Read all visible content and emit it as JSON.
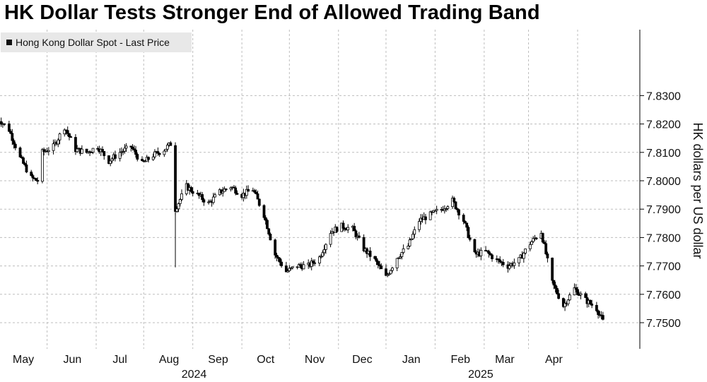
{
  "title": "HK Dollar Tests Stronger End of Allowed Trading Band",
  "legend": {
    "label": "Hong Kong Dollar Spot - Last Price"
  },
  "colors": {
    "candle": "#000000",
    "grid": "#bdbdbd",
    "legend_bg": "#e8e8e8"
  },
  "chart_data": {
    "type": "candlestick",
    "title": "HK Dollar Tests Stronger End of Allowed Trading Band",
    "ylabel": "HK dollars per US dollar",
    "xlabel": "",
    "ylim": [
      7.745,
      7.832
    ],
    "y_ticks": [
      "7.8300",
      "7.8200",
      "7.8100",
      "7.8000",
      "7.7900",
      "7.7800",
      "7.7700",
      "7.7600",
      "7.7500"
    ],
    "x_months": [
      {
        "label": "May",
        "date": "2024-05-01"
      },
      {
        "label": "Jun",
        "date": "2024-06-01"
      },
      {
        "label": "Jul",
        "date": "2024-07-01"
      },
      {
        "label": "Aug",
        "date": "2024-08-01"
      },
      {
        "label": "Sep",
        "date": "2024-09-01"
      },
      {
        "label": "Oct",
        "date": "2024-10-01"
      },
      {
        "label": "Nov",
        "date": "2024-11-01"
      },
      {
        "label": "Dec",
        "date": "2024-12-01"
      },
      {
        "label": "Jan",
        "date": "2025-01-01"
      },
      {
        "label": "Feb",
        "date": "2025-02-01"
      },
      {
        "label": "Mar",
        "date": "2025-03-01"
      },
      {
        "label": "Apr",
        "date": "2025-04-01"
      }
    ],
    "x_years": [
      {
        "label": "2024",
        "date": "2024-09-01"
      },
      {
        "label": "2025",
        "date": "2025-03-01"
      }
    ],
    "grid": true,
    "legend_position": "top-left",
    "series": [
      {
        "name": "Hong Kong Dollar Spot - Last Price",
        "points": [
          [
            "2024-04-15",
            7.822
          ],
          [
            "2024-04-22",
            7.818
          ],
          [
            "2024-04-29",
            7.808
          ],
          [
            "2024-05-06",
            7.801
          ],
          [
            "2024-05-10",
            7.8
          ],
          [
            "2024-05-13",
            7.81
          ],
          [
            "2024-05-20",
            7.812
          ],
          [
            "2024-05-27",
            7.819
          ],
          [
            "2024-06-03",
            7.811
          ],
          [
            "2024-06-10",
            7.81
          ],
          [
            "2024-06-17",
            7.812
          ],
          [
            "2024-06-24",
            7.807
          ],
          [
            "2024-07-01",
            7.81
          ],
          [
            "2024-07-08",
            7.812
          ],
          [
            "2024-07-15",
            7.806
          ],
          [
            "2024-07-22",
            7.809
          ],
          [
            "2024-07-29",
            7.811
          ],
          [
            "2024-08-02",
            7.813
          ],
          [
            "2024-08-05",
            7.79
          ],
          [
            "2024-08-12",
            7.798
          ],
          [
            "2024-08-19",
            7.795
          ],
          [
            "2024-08-26",
            7.792
          ],
          [
            "2024-09-02",
            7.796
          ],
          [
            "2024-09-09",
            7.798
          ],
          [
            "2024-09-16",
            7.795
          ],
          [
            "2024-09-23",
            7.797
          ],
          [
            "2024-09-30",
            7.788
          ],
          [
            "2024-10-07",
            7.774
          ],
          [
            "2024-10-14",
            7.768
          ],
          [
            "2024-10-21",
            7.77
          ],
          [
            "2024-10-28",
            7.77
          ],
          [
            "2024-11-04",
            7.773
          ],
          [
            "2024-11-11",
            7.782
          ],
          [
            "2024-11-18",
            7.784
          ],
          [
            "2024-11-25",
            7.783
          ],
          [
            "2024-12-02",
            7.776
          ],
          [
            "2024-12-09",
            7.772
          ],
          [
            "2024-12-16",
            7.766
          ],
          [
            "2024-12-23",
            7.773
          ],
          [
            "2024-12-30",
            7.777
          ],
          [
            "2025-01-06",
            7.786
          ],
          [
            "2025-01-13",
            7.788
          ],
          [
            "2025-01-20",
            7.79
          ],
          [
            "2025-01-27",
            7.793
          ],
          [
            "2025-02-03",
            7.786
          ],
          [
            "2025-02-10",
            7.774
          ],
          [
            "2025-02-17",
            7.775
          ],
          [
            "2025-02-24",
            7.772
          ],
          [
            "2025-03-03",
            7.77
          ],
          [
            "2025-03-10",
            7.772
          ],
          [
            "2025-03-17",
            7.778
          ],
          [
            "2025-03-24",
            7.782
          ],
          [
            "2025-03-31",
            7.764
          ],
          [
            "2025-04-07",
            7.756
          ],
          [
            "2025-04-14",
            7.762
          ],
          [
            "2025-04-21",
            7.758
          ],
          [
            "2025-04-28",
            7.755
          ],
          [
            "2025-05-02",
            7.7505
          ]
        ]
      }
    ]
  }
}
